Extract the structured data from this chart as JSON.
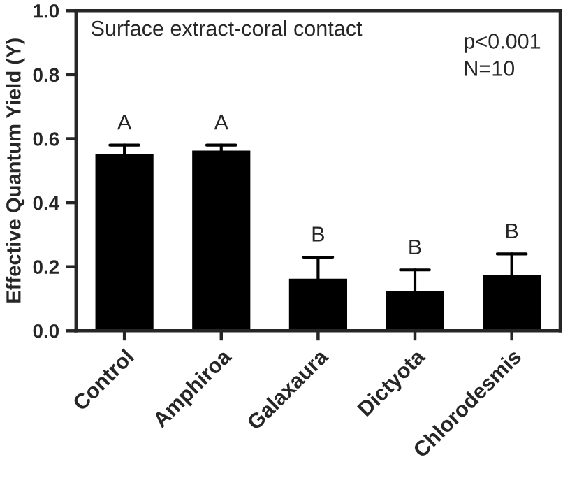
{
  "chart_data": {
    "type": "bar",
    "title": "Surface extract-coral contact",
    "ylabel": "Effective Quantum Yield (Y)",
    "categories": [
      "Control",
      "Amphiroa",
      "Galaxaura",
      "Dictyota",
      "Chlorodesmis"
    ],
    "values": [
      0.55,
      0.56,
      0.16,
      0.12,
      0.17
    ],
    "errors": [
      [
        0.55,
        0.58
      ],
      [
        0.56,
        0.58
      ],
      [
        0.16,
        0.23
      ],
      [
        0.12,
        0.19
      ],
      [
        0.17,
        0.24
      ]
    ],
    "color": "#000000",
    "ylim": [
      0,
      1.0
    ],
    "yticks": [
      {
        "value": 0,
        "label": "0.0"
      },
      0.2,
      0.4,
      0.6,
      0.8,
      {
        "value": 1.0,
        "label": "1.0"
      }
    ],
    "grid": false,
    "value_labels": [
      "A",
      "A",
      "B",
      "B",
      "B"
    ],
    "annotations": [
      "p<0.001",
      "N=10"
    ]
  }
}
